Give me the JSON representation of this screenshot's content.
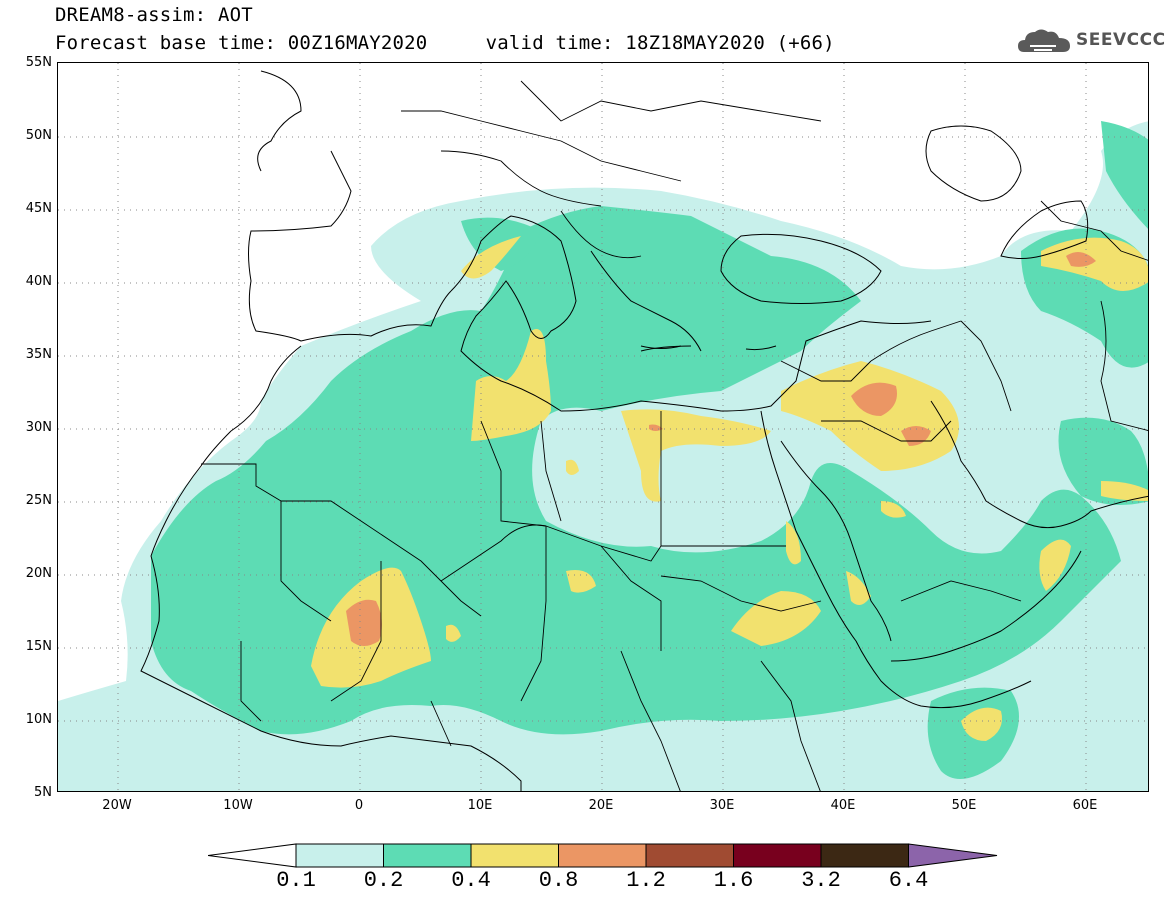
{
  "header": {
    "line1": "DREAM8-assim: AOT",
    "line2": "Forecast base time: 00Z16MAY2020     valid time: 18Z18MAY2020 (+66)"
  },
  "logo": {
    "text": "SEEVCCC",
    "icon": "cloud-icon"
  },
  "map": {
    "lat_labels": [
      "55N",
      "50N",
      "45N",
      "40N",
      "35N",
      "30N",
      "25N",
      "20N",
      "15N",
      "10N",
      "5N"
    ],
    "lon_labels": [
      "20W",
      "10W",
      "0",
      "10E",
      "20E",
      "30E",
      "40E",
      "50E",
      "60E"
    ],
    "extent": {
      "lon": [
        -25,
        65
      ],
      "lat": [
        5,
        55
      ]
    }
  },
  "legend": {
    "labels": [
      "0.1",
      "0.2",
      "0.4",
      "0.8",
      "1.2",
      "1.6",
      "3.2",
      "6.4"
    ],
    "colors": [
      "#c8f0eb",
      "#5ddcb4",
      "#f2e16e",
      "#eb9664",
      "#a04b32",
      "#78001e",
      "#3c2814",
      "#8c64aa"
    ]
  }
}
